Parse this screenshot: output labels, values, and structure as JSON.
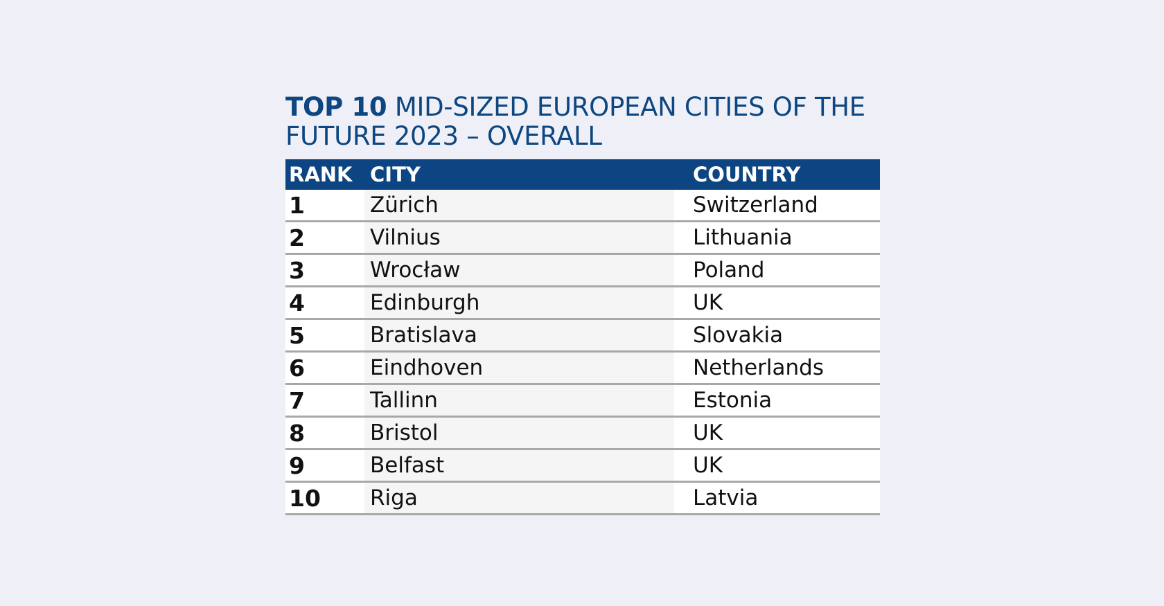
{
  "title": {
    "strong": "TOP 10",
    "rest": " MID-SIZED EUROPEAN CITIES OF THE FUTURE 2023 – OVERALL"
  },
  "table": {
    "headers": {
      "rank": "RANK",
      "city": "CITY",
      "country": "COUNTRY"
    },
    "rows": [
      {
        "rank": "1",
        "city": "Zürich",
        "country": "Switzerland"
      },
      {
        "rank": "2",
        "city": "Vilnius",
        "country": "Lithuania"
      },
      {
        "rank": "3",
        "city": "Wrocław",
        "country": "Poland"
      },
      {
        "rank": "4",
        "city": "Edinburgh",
        "country": "UK"
      },
      {
        "rank": "5",
        "city": "Bratislava",
        "country": "Slovakia"
      },
      {
        "rank": "6",
        "city": "Eindhoven",
        "country": "Netherlands"
      },
      {
        "rank": "7",
        "city": "Tallinn",
        "country": "Estonia"
      },
      {
        "rank": "8",
        "city": "Bristol",
        "country": "UK"
      },
      {
        "rank": "9",
        "city": "Belfast",
        "country": "UK"
      },
      {
        "rank": "10",
        "city": "Riga",
        "country": "Latvia"
      }
    ]
  },
  "colors": {
    "accent": "#0c4581",
    "background": "#eff0f7",
    "row_divider": "#a8a8a8"
  }
}
